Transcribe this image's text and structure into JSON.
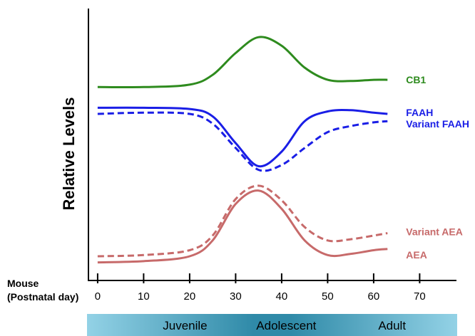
{
  "chart_data": {
    "type": "line",
    "ylabel": "Relative Levels",
    "xlabel_lines": [
      "Mouse",
      "(Postnatal day)"
    ],
    "xticks": [
      0,
      10,
      20,
      30,
      40,
      50,
      60,
      70
    ],
    "xlim": [
      -2,
      78
    ],
    "ylim": [
      0,
      10
    ],
    "series": [
      {
        "name": "CB1",
        "color": "#2e8b1e",
        "dashed": false,
        "x": [
          0,
          10,
          20,
          25,
          30,
          35,
          40,
          45,
          50,
          55,
          60,
          63
        ],
        "values": [
          7.3,
          7.3,
          7.4,
          7.8,
          8.7,
          9.35,
          9.0,
          8.1,
          7.6,
          7.55,
          7.6,
          7.6
        ]
      },
      {
        "name": "FAAH",
        "color": "#1a1ee6",
        "dashed": false,
        "x": [
          0,
          10,
          20,
          25,
          30,
          35,
          40,
          45,
          50,
          55,
          60,
          63
        ],
        "values": [
          6.45,
          6.45,
          6.4,
          6.1,
          5.0,
          4.05,
          4.65,
          5.9,
          6.3,
          6.35,
          6.25,
          6.2
        ]
      },
      {
        "name": "Variant FAAH",
        "color": "#1a1ee6",
        "dashed": false,
        "x": [
          0,
          10,
          20,
          25,
          30,
          35,
          40,
          45,
          50,
          55,
          60,
          63
        ],
        "values": [
          6.2,
          6.25,
          6.2,
          5.8,
          4.8,
          3.9,
          4.1,
          4.8,
          5.45,
          5.7,
          5.85,
          5.9
        ]
      },
      {
        "name": "Variant AEA",
        "color": "#c76a6a",
        "dashed": true,
        "x": [
          0,
          10,
          20,
          25,
          30,
          35,
          40,
          45,
          50,
          55,
          60,
          63
        ],
        "values": [
          0.35,
          0.4,
          0.6,
          1.2,
          2.7,
          3.25,
          2.65,
          1.55,
          1.0,
          1.05,
          1.2,
          1.3
        ]
      },
      {
        "name": "AEA",
        "color": "#c76a6a",
        "dashed": false,
        "x": [
          0,
          10,
          20,
          25,
          30,
          35,
          40,
          45,
          50,
          55,
          60,
          63
        ],
        "values": [
          0.1,
          0.15,
          0.35,
          1.0,
          2.5,
          3.05,
          2.3,
          1.0,
          0.4,
          0.45,
          0.6,
          0.65
        ]
      }
    ],
    "stages": {
      "labels": [
        "Juvenile",
        "Adolescent",
        "Adult"
      ],
      "x": [
        19,
        41,
        64
      ]
    }
  }
}
